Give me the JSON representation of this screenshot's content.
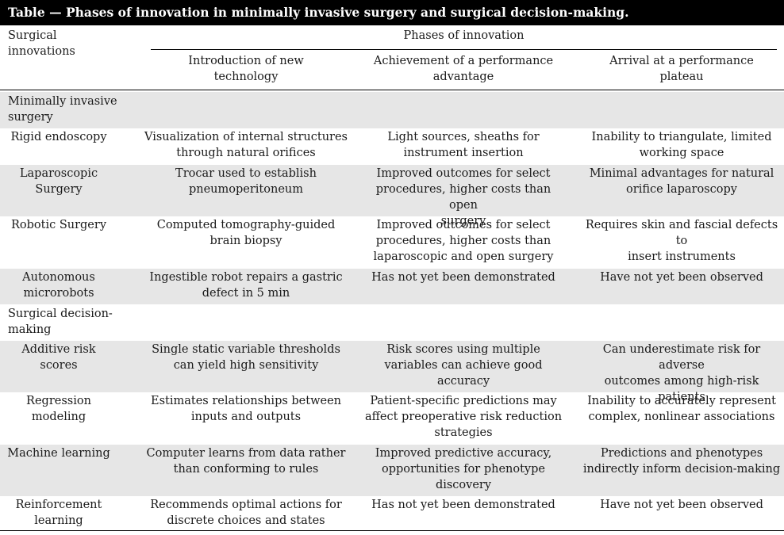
{
  "table": {
    "title": "Table — Phases of innovation in minimally invasive surgery and surgical decision-making.",
    "header": {
      "first_col": "Surgical\ninnovations",
      "phases_label": "Phases of innovation",
      "columns": [
        "Introduction of new\ntechnology",
        "Achievement of a performance\nadvantage",
        "Arrival at a performance\nplateau"
      ]
    },
    "groups": [
      {
        "label": "Minimally invasive\nsurgery",
        "rows": [
          {
            "name": "Rigid endoscopy",
            "intro": "Visualization of internal structures\nthrough natural orifices",
            "advantage": "Light sources, sheaths for\ninstrument insertion",
            "plateau": "Inability to triangulate, limited\nworking space"
          },
          {
            "name": "Laparoscopic\nSurgery",
            "intro": "Trocar used to establish\npneumoperitoneum",
            "advantage": "Improved outcomes for select\nprocedures, higher costs than open\nsurgery",
            "plateau": "Minimal advantages for natural\norifice laparoscopy"
          },
          {
            "name": "Robotic Surgery",
            "intro": "Computed tomography-guided\nbrain biopsy",
            "advantage": "Improved outcomes for select\nprocedures, higher costs than\nlaparoscopic and open surgery",
            "plateau": "Requires skin and fascial defects to\ninsert instruments"
          },
          {
            "name": "Autonomous\nmicrorobots",
            "intro": "Ingestible robot repairs a gastric\ndefect in 5 min",
            "advantage": "Has not yet been demonstrated",
            "plateau": "Have not yet been observed"
          }
        ]
      },
      {
        "label": "Surgical decision-\nmaking",
        "rows": [
          {
            "name": "Additive risk\nscores",
            "intro": "Single static variable thresholds\ncan yield high sensitivity",
            "advantage": "Risk scores using multiple\nvariables can achieve good\naccuracy",
            "plateau": "Can underestimate risk for adverse\noutcomes among high-risk\npatients"
          },
          {
            "name": "Regression\nmodeling",
            "intro": "Estimates relationships between\ninputs and outputs",
            "advantage": "Patient-specific predictions may\naffect preoperative risk reduction\nstrategies",
            "plateau": "Inability to accurately represent\ncomplex, nonlinear associations"
          },
          {
            "name": "Machine learning",
            "intro": "Computer learns from data rather\nthan conforming to rules",
            "advantage": "Improved predictive accuracy,\nopportunities for phenotype\ndiscovery",
            "plateau": "Predictions and phenotypes\nindirectly inform decision-making"
          },
          {
            "name": "Reinforcement\nlearning",
            "intro": "Recommends optimal actions for\ndiscrete choices and states",
            "advantage": "Has not yet been demonstrated",
            "plateau": "Have not yet been observed"
          }
        ]
      }
    ]
  }
}
